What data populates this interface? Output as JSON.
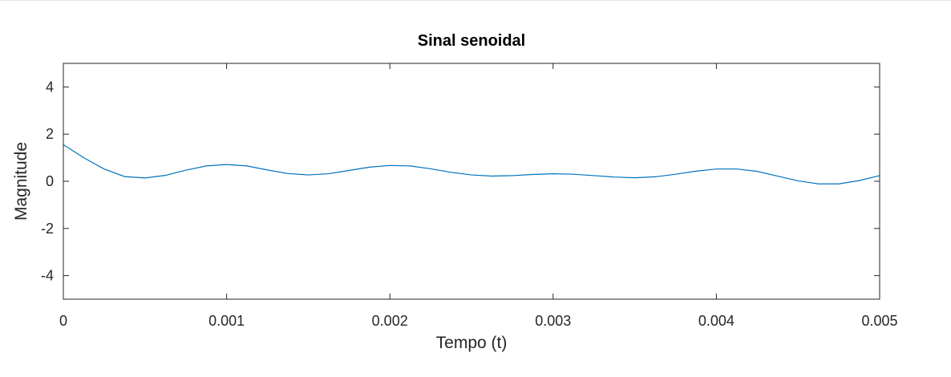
{
  "chart_data": {
    "type": "line",
    "title": "Sinal senoidal",
    "xlabel": "Tempo (t)",
    "ylabel": "Magnitude",
    "xlim": [
      0,
      0.005
    ],
    "ylim": [
      -5,
      5
    ],
    "xticks": [
      0,
      0.001,
      0.002,
      0.003,
      0.004,
      0.005
    ],
    "xtick_labels": [
      "0",
      "0.001",
      "0.002",
      "0.003",
      "0.004",
      "0.005"
    ],
    "yticks": [
      -4,
      -2,
      0,
      2,
      4
    ],
    "ytick_labels": [
      "-4",
      "-2",
      "0",
      "2",
      "4"
    ],
    "grid": false,
    "series": [
      {
        "color": "#0072bd",
        "x": [
          0,
          0.000125,
          0.00025,
          0.000375,
          0.0005,
          0.000625,
          0.00075,
          0.000875,
          0.001,
          0.001125,
          0.00125,
          0.001375,
          0.0015,
          0.001625,
          0.00175,
          0.001875,
          0.002,
          0.002125,
          0.00225,
          0.002375,
          0.0025,
          0.002625,
          0.00275,
          0.002875,
          0.003,
          0.003125,
          0.00325,
          0.003375,
          0.0035,
          0.003625,
          0.00375,
          0.003875,
          0.004,
          0.004125,
          0.00425,
          0.004375,
          0.0045,
          0.004625,
          0.00475,
          0.004875,
          0.005
        ],
        "y": [
          1.55,
          1.0,
          0.52,
          0.2,
          0.14,
          0.25,
          0.47,
          0.65,
          0.71,
          0.65,
          0.48,
          0.33,
          0.27,
          0.32,
          0.46,
          0.6,
          0.67,
          0.65,
          0.53,
          0.38,
          0.27,
          0.22,
          0.24,
          0.29,
          0.32,
          0.3,
          0.24,
          0.18,
          0.15,
          0.19,
          0.3,
          0.43,
          0.52,
          0.52,
          0.42,
          0.22,
          0.02,
          -0.11,
          -0.11,
          0.03,
          0.24
        ]
      }
    ]
  }
}
